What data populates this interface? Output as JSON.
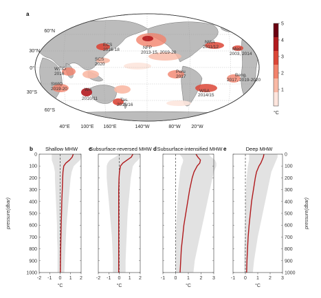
{
  "chart_data": [
    {
      "type": "heatmap",
      "panel_letter": "a",
      "map_labels": {
        "lat": [
          "60°N",
          "30°N",
          "0°",
          "30°S",
          "60°S"
        ],
        "lon": [
          "40°E",
          "100°E",
          "160°E",
          "140°W",
          "80°W",
          "20°W"
        ]
      },
      "events": [
        {
          "name": "ECS",
          "years": "2016-18"
        },
        {
          "name": "SCS",
          "years": "2020"
        },
        {
          "name": "NFP",
          "years": "2013-15, 2019-20"
        },
        {
          "name": "NWA",
          "years": "2011/12"
        },
        {
          "name": "Med",
          "years": "2003, 2014"
        },
        {
          "name": "WTIO",
          "years": "2016"
        },
        {
          "name": "SWIO",
          "years": "2019-20"
        },
        {
          "name": "WA",
          "years": "2010/11"
        },
        {
          "name": "Peru",
          "years": "2017"
        },
        {
          "name": "Beng.",
          "years": "2017, 2019-2020"
        },
        {
          "name": "WSA",
          "years": "2014/15"
        },
        {
          "name": "Tas.",
          "years": "2015/16"
        }
      ],
      "colorbar": {
        "ticks": [
          "1",
          "2",
          "3",
          "4",
          "5"
        ],
        "unit": "°C",
        "range": [
          0,
          5
        ],
        "colors": [
          "#fde5dd",
          "#f9b9a5",
          "#f2826b",
          "#dc4637",
          "#b21a1e",
          "#6b0011"
        ]
      }
    },
    {
      "type": "line",
      "panel_letter": "b",
      "title": "Shallow MHW",
      "xlabel": "°C",
      "ylabel": "pressure(dbar)",
      "xlim": [
        -2,
        2
      ],
      "ylim": [
        0,
        1000
      ],
      "xticks": [
        "-2",
        "-1",
        "0",
        "1",
        "2"
      ],
      "yticks": [
        "0",
        "100",
        "200",
        "300",
        "400",
        "500",
        "600",
        "700",
        "800",
        "900",
        "1000"
      ],
      "series": [
        {
          "values_p": [
            0,
            25,
            50,
            75,
            100,
            150,
            200,
            300,
            400,
            500,
            600,
            700,
            800,
            900,
            1000
          ],
          "values_t": [
            1.25,
            1.15,
            0.9,
            0.55,
            0.35,
            0.27,
            0.24,
            0.2,
            0.16,
            0.13,
            0.1,
            0.07,
            0.05,
            0.03,
            0.02
          ]
        }
      ],
      "band": {
        "lo": [
          -0.8,
          -0.8,
          -0.8,
          -0.7,
          -0.6,
          -0.5,
          -0.5,
          -0.45,
          -0.4,
          -0.35,
          -0.3,
          -0.3,
          -0.25,
          -0.25,
          -0.25
        ],
        "hi": [
          2.0,
          2.0,
          1.9,
          1.6,
          1.3,
          1.1,
          1.0,
          0.9,
          0.8,
          0.7,
          0.6,
          0.55,
          0.5,
          0.45,
          0.4
        ]
      }
    },
    {
      "type": "line",
      "panel_letter": "c",
      "title": "Subsurface-reversed MHW",
      "xlabel": "°C",
      "xlim": [
        -2,
        2
      ],
      "ylim": [
        0,
        1000
      ],
      "xticks": [
        "-2",
        "-1",
        "0",
        "1",
        "2"
      ],
      "series": [
        {
          "values_p": [
            0,
            25,
            50,
            75,
            100,
            150,
            200,
            300,
            400,
            500,
            600,
            700,
            800,
            900,
            1000
          ],
          "values_t": [
            1.3,
            1.15,
            0.75,
            0.35,
            0.12,
            0.02,
            -0.02,
            -0.05,
            -0.05,
            -0.05,
            -0.05,
            -0.05,
            -0.05,
            -0.05,
            -0.05
          ]
        }
      ],
      "band": {
        "lo": [
          0.0,
          -0.4,
          -0.9,
          -1.1,
          -1.2,
          -1.2,
          -1.2,
          -1.1,
          -1.0,
          -0.9,
          -0.8,
          -0.7,
          -0.65,
          -0.6,
          -0.6
        ],
        "hi": [
          2.0,
          2.0,
          1.8,
          1.5,
          1.3,
          1.2,
          1.1,
          1.0,
          0.9,
          0.8,
          0.75,
          0.7,
          0.65,
          0.6,
          0.6
        ]
      }
    },
    {
      "type": "line",
      "panel_letter": "d",
      "title": "Subsurface-intensified MHW",
      "xlabel": "°C",
      "xlim": [
        -1,
        3
      ],
      "ylim": [
        0,
        1000
      ],
      "xticks": [
        "-1",
        "0",
        "1",
        "2",
        "3"
      ],
      "series": [
        {
          "values_p": [
            0,
            25,
            50,
            75,
            100,
            150,
            200,
            300,
            400,
            500,
            600,
            700,
            800,
            900,
            1000
          ],
          "values_t": [
            1.6,
            1.75,
            1.95,
            1.9,
            1.7,
            1.45,
            1.3,
            1.1,
            0.95,
            0.8,
            0.65,
            0.55,
            0.45,
            0.4,
            0.35
          ]
        }
      ],
      "band": {
        "lo": [
          0.3,
          0.5,
          0.6,
          0.55,
          0.45,
          0.35,
          0.3,
          0.2,
          0.15,
          0.1,
          0.05,
          0.0,
          0.0,
          0.0,
          0.0
        ],
        "hi": [
          2.6,
          2.8,
          3.1,
          3.2,
          3.2,
          3.0,
          2.9,
          2.7,
          2.5,
          2.3,
          2.1,
          1.9,
          1.7,
          1.5,
          1.4
        ]
      }
    },
    {
      "type": "line",
      "panel_letter": "e",
      "title": "Deep MHW",
      "xlabel": "°C",
      "ylabel": "pressure(dbar)",
      "xlim": [
        -1,
        3
      ],
      "ylim": [
        0,
        1000
      ],
      "xticks": [
        "-1",
        "0",
        "1",
        "2",
        "3"
      ],
      "series": [
        {
          "values_p": [
            0,
            25,
            50,
            75,
            100,
            150,
            200,
            300,
            400,
            500,
            600,
            700,
            800,
            900,
            1000
          ],
          "values_t": [
            1.5,
            1.45,
            1.35,
            1.25,
            1.1,
            0.9,
            0.8,
            0.65,
            0.5,
            0.4,
            0.3,
            0.22,
            0.17,
            0.13,
            0.1
          ]
        }
      ],
      "band": {
        "lo": [
          0.3,
          0.3,
          0.3,
          0.25,
          0.2,
          0.15,
          0.1,
          0.05,
          0.0,
          0.0,
          -0.05,
          -0.05,
          -0.1,
          -0.1,
          -0.1
        ],
        "hi": [
          2.6,
          2.6,
          2.5,
          2.4,
          2.3,
          2.1,
          2.0,
          1.8,
          1.6,
          1.4,
          1.2,
          1.0,
          0.85,
          0.7,
          0.6
        ]
      }
    }
  ]
}
